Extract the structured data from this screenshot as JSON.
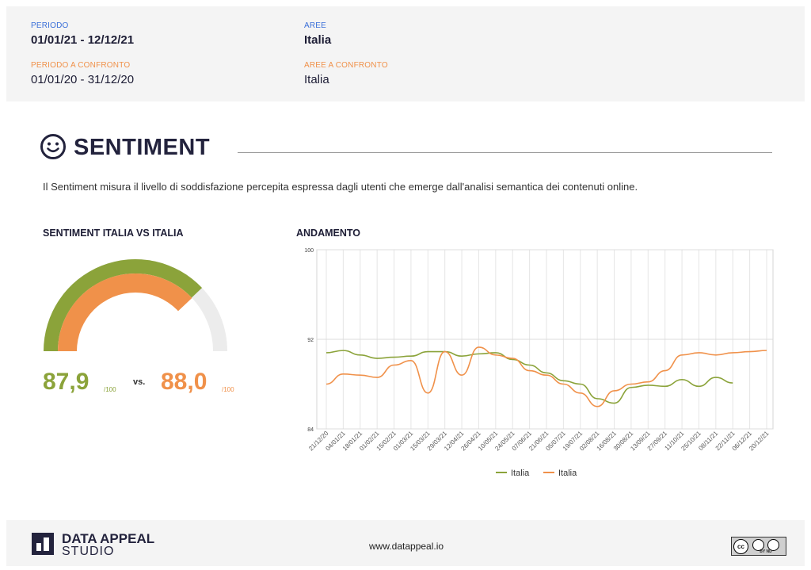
{
  "header": {
    "periodo_label": "PERIODO",
    "periodo_value": "01/01/21 - 12/12/21",
    "periodo_confronto_label": "PERIODO A CONFRONTO",
    "periodo_confronto_value": "01/01/20 - 31/12/20",
    "aree_label": "AREE",
    "aree_value": "Italia",
    "aree_confronto_label": "AREE A CONFRONTO",
    "aree_confronto_value": "Italia"
  },
  "section": {
    "icon": "smiley-icon",
    "title": "SENTIMENT",
    "description": "Il Sentiment misura il livello di soddisfazione percepita espressa dagli utenti che emerge dall'analisi semantica dei contenuti online."
  },
  "gauge": {
    "title": "SENTIMENT ITALIA VS ITALIA",
    "value_a": "87,9",
    "value_a_num": 87.9,
    "unit_a": "/100",
    "vs": "vs.",
    "value_b": "88,0",
    "value_b_num": 88.0,
    "unit_b": "/100",
    "color_a": "#8ba33a",
    "color_b": "#f0914a"
  },
  "chart_title": "ANDAMENTO",
  "chart_data": {
    "type": "line",
    "ylim": [
      84,
      100
    ],
    "y_ticks": [
      "84",
      "92",
      "100"
    ],
    "x": [
      "21/12/20",
      "04/01/21",
      "18/01/21",
      "01/02/21",
      "15/02/21",
      "01/03/21",
      "15/03/21",
      "29/03/21",
      "12/04/21",
      "26/04/21",
      "10/05/21",
      "24/05/21",
      "07/06/21",
      "21/06/21",
      "05/07/21",
      "19/07/21",
      "02/08/21",
      "16/08/21",
      "30/08/21",
      "13/09/21",
      "27/09/21",
      "11/10/21",
      "25/10/21",
      "08/11/21",
      "22/11/21",
      "06/12/21",
      "20/12/21"
    ],
    "series": [
      {
        "name": "Italia",
        "color": "#8ba33a",
        "values": [
          90.8,
          91.0,
          90.6,
          90.3,
          90.4,
          90.5,
          90.9,
          90.9,
          90.5,
          90.7,
          90.8,
          90.2,
          89.7,
          89.0,
          88.3,
          88.0,
          86.7,
          86.3,
          87.7,
          87.9,
          87.8,
          88.4,
          87.8,
          88.6,
          88.1,
          null,
          null
        ]
      },
      {
        "name": "Italia",
        "color": "#f0914a",
        "values": [
          88.0,
          88.9,
          88.8,
          88.6,
          89.7,
          90.1,
          87.2,
          90.9,
          88.8,
          91.3,
          90.6,
          90.3,
          89.2,
          88.8,
          88.0,
          87.2,
          86.0,
          87.4,
          88.0,
          88.2,
          89.2,
          90.6,
          90.8,
          90.6,
          90.8,
          90.9,
          91.0
        ]
      }
    ],
    "legend_position": "bottom",
    "grid": true
  },
  "footer": {
    "brand_line1": "DATA APPEAL",
    "brand_line2": "STUDIO",
    "url": "www.datappeal.io",
    "license_badge": "BY ND"
  }
}
